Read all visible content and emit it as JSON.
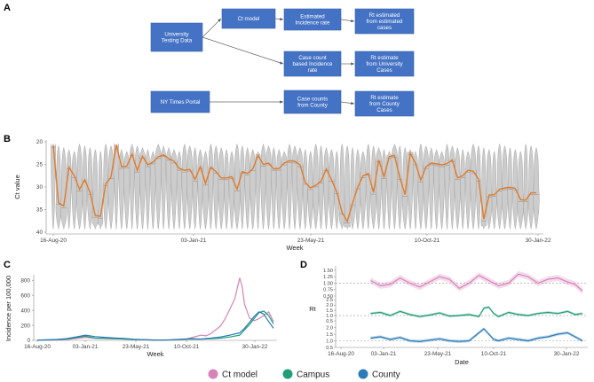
{
  "panels": {
    "A": "A",
    "B": "B",
    "C": "C",
    "D": "D"
  },
  "flowchart": {
    "nodes": [
      {
        "id": "utd",
        "lines": [
          "University",
          "Testing Data"
        ]
      },
      {
        "id": "ct",
        "lines": [
          "Ct model"
        ]
      },
      {
        "id": "eir",
        "lines": [
          "Estimated",
          "Incidence rate"
        ]
      },
      {
        "id": "rte",
        "lines": [
          "Rt estimated",
          "from estimated",
          "cases"
        ]
      },
      {
        "id": "cc",
        "lines": [
          "Case count",
          "based Incidence",
          "rate"
        ]
      },
      {
        "id": "rtu",
        "lines": [
          "Rt estimate",
          "from University",
          "Cases"
        ]
      },
      {
        "id": "nyt",
        "lines": [
          "NY Times Portal"
        ]
      },
      {
        "id": "ccc",
        "lines": [
          "Case counts",
          "from County"
        ]
      },
      {
        "id": "rtc",
        "lines": [
          "Rt estimate",
          "from County",
          "Cases"
        ]
      }
    ],
    "edges": [
      [
        "utd",
        "ct"
      ],
      [
        "ct",
        "eir"
      ],
      [
        "eir",
        "rte"
      ],
      [
        "utd",
        "cc"
      ],
      [
        "cc",
        "rtu"
      ],
      [
        "nyt",
        "ccc"
      ],
      [
        "ccc",
        "rtc"
      ]
    ]
  },
  "chart_data": [
    {
      "panel": "B",
      "type": "violin+line",
      "xlabel": "Week",
      "ylabel": "Ct value",
      "ylim": [
        20,
        40
      ],
      "y_reversed": true,
      "yticks": [
        20,
        25,
        30,
        35,
        40
      ],
      "xticks": [
        "16-Aug-20",
        "03-Jan-21",
        "23-May-21",
        "10-Oct-21",
        "30-Jan-22"
      ],
      "line_color": "#e07b2a",
      "violin_color": "#cccccc",
      "weekly_median_ct": [
        20.8,
        33.5,
        34.2,
        25.6,
        27.5,
        30.5,
        28.4,
        31.2,
        36.3,
        36.5,
        29.3,
        27.8,
        20.6,
        25.5,
        25.4,
        22.7,
        26.3,
        23.2,
        25.1,
        24.5,
        23.3,
        22.9,
        23.7,
        24.3,
        25.9,
        26.3,
        26.1,
        28.3,
        25.5,
        29.2,
        25.6,
        26.6,
        28.0,
        28.0,
        27.7,
        30.5,
        26.6,
        27.0,
        26.0,
        23.0,
        25.0,
        24.7,
        26.0,
        25.9,
        24.7,
        24.2,
        24.3,
        25.1,
        29.0,
        30.2,
        29.6,
        28.7,
        26.0,
        28.4,
        31.1,
        35.6,
        37.6,
        33.6,
        30.0,
        27.5,
        27.0,
        31.2,
        24.0,
        27.7,
        23.3,
        23.0,
        27.9,
        31.7,
        22.5,
        24.7,
        28.5,
        25.5,
        24.7,
        24.9,
        25.1,
        24.8,
        24.0,
        28.0,
        27.5,
        26.3,
        26.5,
        28.3,
        37.1,
        31.8,
        31.7,
        30.5,
        30.2,
        30.1,
        30.3,
        32.8,
        32.9,
        31.3,
        31.3
      ]
    },
    {
      "panel": "C",
      "type": "line",
      "xlabel": "Week",
      "ylabel": "Incidence per 100,000",
      "ylim": [
        0,
        850
      ],
      "yticks": [
        0,
        200,
        400,
        600,
        800
      ],
      "xticks": [
        "16-Aug-20",
        "03-Jan-21",
        "23-May-21",
        "10-Oct-21",
        "30-Jan-22"
      ],
      "series": [
        {
          "name": "Ct model",
          "color": "#d683b9",
          "x": [
            0,
            8,
            12,
            16,
            20,
            24,
            30,
            36,
            40,
            44,
            48,
            52,
            56,
            60,
            62,
            64,
            68,
            70,
            72,
            74,
            76,
            78,
            80,
            82,
            83,
            84,
            85,
            86,
            88,
            90,
            92,
            94,
            96,
            98
          ],
          "y": [
            2,
            5,
            10,
            25,
            40,
            28,
            22,
            18,
            12,
            10,
            6,
            5,
            8,
            15,
            20,
            35,
            70,
            60,
            90,
            140,
            190,
            290,
            420,
            560,
            700,
            830,
            720,
            480,
            300,
            260,
            290,
            330,
            380,
            250
          ]
        },
        {
          "name": "Campus",
          "color": "#1f9e77",
          "x": [
            0,
            8,
            12,
            16,
            20,
            24,
            30,
            36,
            40,
            44,
            48,
            52,
            56,
            60,
            64,
            68,
            72,
            76,
            80,
            84,
            86,
            88,
            90,
            92,
            94,
            96,
            98
          ],
          "y": [
            2,
            8,
            15,
            35,
            55,
            30,
            25,
            18,
            10,
            8,
            4,
            3,
            6,
            12,
            18,
            15,
            22,
            30,
            45,
            70,
            140,
            210,
            290,
            370,
            390,
            330,
            220
          ]
        },
        {
          "name": "County",
          "color": "#2a7bb8",
          "x": [
            0,
            8,
            12,
            16,
            20,
            24,
            30,
            36,
            40,
            44,
            48,
            52,
            56,
            60,
            64,
            68,
            72,
            76,
            80,
            84,
            86,
            88,
            90,
            92,
            94,
            96,
            98
          ],
          "y": [
            3,
            12,
            22,
            45,
            70,
            50,
            35,
            25,
            15,
            10,
            5,
            4,
            8,
            15,
            22,
            18,
            30,
            45,
            70,
            100,
            160,
            240,
            320,
            380,
            350,
            250,
            160
          ]
        }
      ]
    },
    {
      "panel": "D",
      "type": "line",
      "xlabel": "Date",
      "ylabel": "Rt",
      "xticks": [
        "16-Aug-20",
        "03-Jan-21",
        "23-May-21",
        "10-Oct-21",
        "30-Jan-22"
      ],
      "subplots": [
        {
          "name": "Ct model",
          "color": "#d683b9",
          "ylim": [
            0.5,
            1.6
          ],
          "yticks": [
            0.5,
            0.75,
            1.0,
            1.25,
            1.5
          ],
          "ytick_labels": [
            "0.50",
            "0.75",
            "1.00",
            "1.25",
            "1.50"
          ],
          "reference": 1.0,
          "x": [
            12,
            16,
            20,
            24,
            28,
            32,
            36,
            40,
            44,
            48,
            52,
            56,
            60,
            64,
            68,
            72,
            76,
            80,
            84,
            88,
            92,
            95,
            98
          ],
          "y": [
            1.1,
            0.9,
            0.95,
            1.2,
            1.0,
            0.85,
            1.05,
            1.25,
            1.15,
            0.8,
            1.0,
            1.3,
            1.1,
            0.9,
            1.0,
            1.35,
            1.25,
            1.0,
            1.15,
            1.2,
            1.05,
            0.95,
            0.7
          ]
        },
        {
          "name": "Campus",
          "color": "#1f9e77",
          "ylim": [
            0.5,
            2.6
          ],
          "yticks": [
            0.5,
            1.0,
            1.5,
            2.0,
            2.5
          ],
          "ytick_labels": [
            "0.5",
            "1.0",
            "1.5",
            "2.0",
            "2.5"
          ],
          "reference": 1.0,
          "x": [
            12,
            16,
            20,
            24,
            28,
            32,
            36,
            40,
            44,
            48,
            52,
            56,
            58,
            60,
            62,
            64,
            68,
            72,
            76,
            80,
            84,
            88,
            92,
            95,
            98
          ],
          "y": [
            1.2,
            1.3,
            1.0,
            1.4,
            1.1,
            0.9,
            1.05,
            1.25,
            0.95,
            1.0,
            1.1,
            0.9,
            1.7,
            1.8,
            1.2,
            0.9,
            1.3,
            1.1,
            1.0,
            1.2,
            1.3,
            1.2,
            1.4,
            1.1,
            1.2
          ]
        },
        {
          "name": "County",
          "color": "#2a7bb8",
          "ylim": [
            0.5,
            2.3
          ],
          "yticks": [
            0.5,
            1.0,
            1.5,
            2.0
          ],
          "ytick_labels": [
            "0.5",
            "1.0",
            "1.5",
            "2.0"
          ],
          "reference": 1.0,
          "x": [
            12,
            16,
            20,
            24,
            28,
            32,
            36,
            40,
            44,
            48,
            52,
            54,
            56,
            58,
            60,
            62,
            64,
            68,
            72,
            76,
            80,
            84,
            88,
            92,
            95,
            98
          ],
          "y": [
            1.2,
            1.3,
            1.1,
            1.25,
            1.0,
            0.95,
            1.05,
            1.15,
            1.0,
            0.95,
            1.0,
            1.3,
            1.6,
            1.9,
            1.5,
            1.1,
            1.0,
            1.2,
            1.1,
            1.0,
            1.2,
            1.3,
            1.5,
            1.6,
            1.3,
            1.0
          ]
        }
      ]
    }
  ],
  "legend": {
    "items": [
      {
        "label": "Ct model",
        "color": "#d683b9"
      },
      {
        "label": "Campus",
        "color": "#1f9e77"
      },
      {
        "label": "County",
        "color": "#2a7bb8"
      }
    ]
  }
}
